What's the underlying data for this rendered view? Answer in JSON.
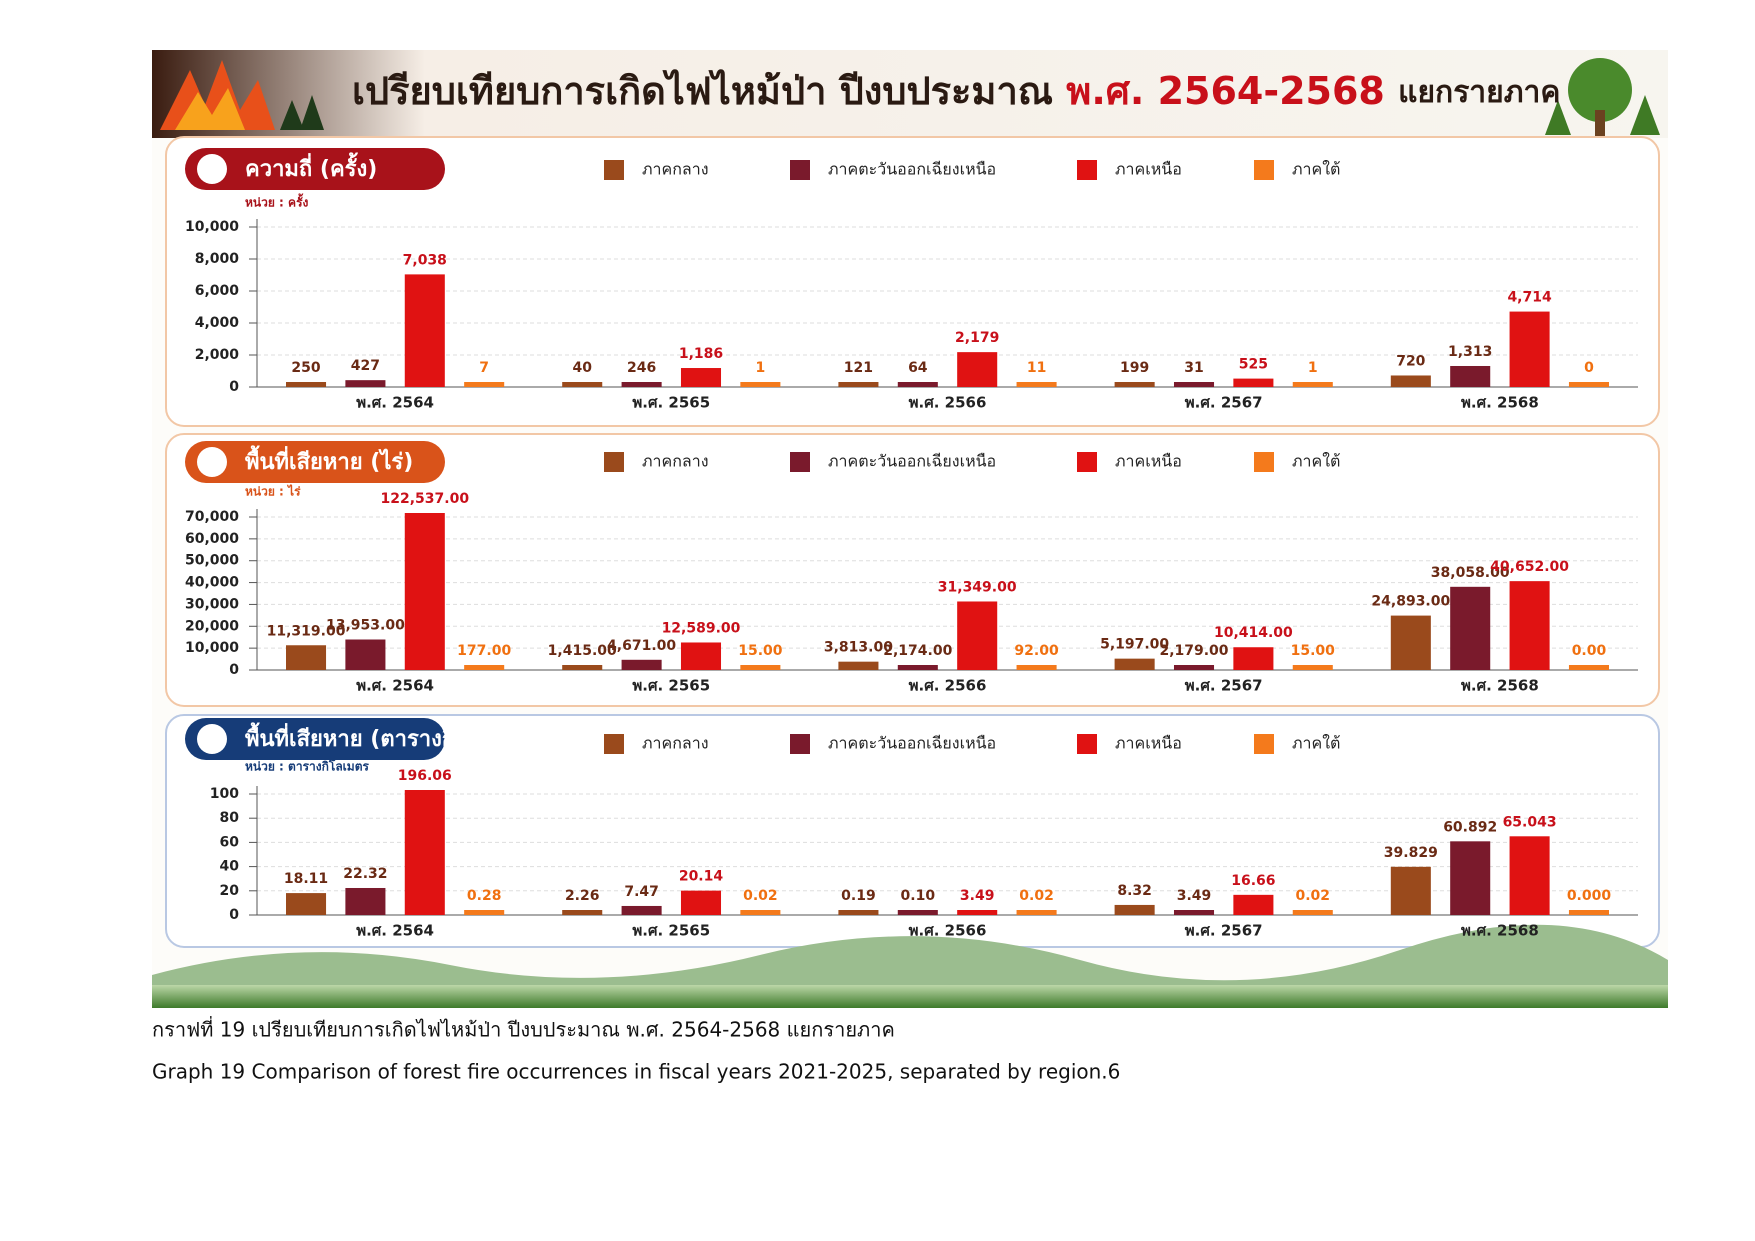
{
  "header": {
    "title_parts": [
      "เปรียบเทียบการเกิดไฟไหม้ป่า ปีงบประมาณ",
      "พ.ศ. 2564-2568",
      "แยกรายภาค"
    ]
  },
  "chart_data": [
    {
      "type": "bar",
      "title": "ความถี่ (ครั้ง)",
      "unit_label": "หน่วย : ครั้ง",
      "categories": [
        "พ.ศ. 2564",
        "พ.ศ. 2565",
        "พ.ศ. 2566",
        "พ.ศ. 2567",
        "พ.ศ. 2568"
      ],
      "series": [
        {
          "name": "ภาคกลาง",
          "color": "#9a4a1c",
          "values": [
            250,
            40,
            121,
            199,
            720
          ],
          "value_labels": [
            "250",
            "40",
            "121",
            "199",
            "720"
          ]
        },
        {
          "name": "ภาคตะวันออกเฉียงเหนือ",
          "color": "#7a1a2c",
          "values": [
            427,
            246,
            64,
            31,
            1313
          ],
          "value_labels": [
            "427",
            "246",
            "64",
            "31",
            "1,313"
          ]
        },
        {
          "name": "ภาคเหนือ",
          "color": "#e01212",
          "values": [
            7038,
            1186,
            2179,
            525,
            4714
          ],
          "value_labels": [
            "7,038",
            "1,186",
            "2,179",
            "525",
            "4,714"
          ]
        },
        {
          "name": "ภาคใต้",
          "color": "#f47a1c",
          "values": [
            7,
            1,
            11,
            1,
            0
          ],
          "value_labels": [
            "7",
            "1",
            "11",
            "1",
            "0"
          ]
        }
      ],
      "ylim": [
        0,
        10000
      ],
      "yticks": [
        0,
        {
          "value": 2000,
          "label": "2,000"
        },
        {
          "value": 4000,
          "label": "4,000"
        },
        {
          "value": 6000,
          "label": "6,000"
        },
        {
          "value": 8000,
          "label": "8,000"
        },
        {
          "value": 10000,
          "label": "10,000"
        }
      ],
      "grid": true,
      "title_color": "#a8121a"
    },
    {
      "type": "bar",
      "title": "พื้นที่เสียหาย (ไร่)",
      "unit_label": "หน่วย : ไร่",
      "categories": [
        "พ.ศ. 2564",
        "พ.ศ. 2565",
        "พ.ศ. 2566",
        "พ.ศ. 2567",
        "พ.ศ. 2568"
      ],
      "series": [
        {
          "name": "ภาคกลาง",
          "color": "#9a4a1c",
          "values": [
            11319,
            1415,
            3813,
            5197,
            24893
          ],
          "value_labels": [
            "11,319.00",
            "1,415.00",
            "3,813.00",
            "5,197.00",
            "24,893.00"
          ]
        },
        {
          "name": "ภาคตะวันออกเฉียงเหนือ",
          "color": "#7a1a2c",
          "values": [
            13953,
            4671,
            2174,
            2179,
            38058
          ],
          "value_labels": [
            "13,953.00",
            "4,671.00",
            "2,174.00",
            "2,179.00",
            "38,058.00"
          ]
        },
        {
          "name": "ภาคเหนือ",
          "color": "#e01212",
          "values": [
            122537,
            12589,
            31349,
            10414,
            40652
          ],
          "value_labels": [
            "122,537.00",
            "12,589.00",
            "31,349.00",
            "10,414.00",
            "40,652.00"
          ]
        },
        {
          "name": "ภาคใต้",
          "color": "#f47a1c",
          "values": [
            177,
            15,
            92,
            15,
            0
          ],
          "value_labels": [
            "177.00",
            "15.00",
            "92.00",
            "15.00",
            "0.00"
          ]
        }
      ],
      "ylim": [
        0,
        70000
      ],
      "yticks": [
        0,
        {
          "value": 10000,
          "label": "10,000"
        },
        {
          "value": 20000,
          "label": "20,000"
        },
        {
          "value": 30000,
          "label": "30,000"
        },
        {
          "value": 40000,
          "label": "40,000"
        },
        {
          "value": 50000,
          "label": "50,000"
        },
        {
          "value": 60000,
          "label": "60,000"
        },
        {
          "value": 70000,
          "label": "70,000"
        }
      ],
      "grid": true,
      "title_color": "#d9531a"
    },
    {
      "type": "bar",
      "title": "พื้นที่เสียหาย (ตารางกิโลเมตร)",
      "unit_label": "หน่วย : ตารางกิโลเมตร",
      "categories": [
        "พ.ศ. 2564",
        "พ.ศ. 2565",
        "พ.ศ. 2566",
        "พ.ศ. 2567",
        "พ.ศ. 2568"
      ],
      "series": [
        {
          "name": "ภาคกลาง",
          "color": "#9a4a1c",
          "values": [
            18.11,
            2.26,
            0.19,
            8.32,
            39.829
          ],
          "value_labels": [
            "18.11",
            "2.26",
            "0.19",
            "8.32",
            "39.829"
          ]
        },
        {
          "name": "ภาคตะวันออกเฉียงเหนือ",
          "color": "#7a1a2c",
          "values": [
            22.32,
            7.47,
            0.1,
            3.49,
            60.892
          ],
          "value_labels": [
            "22.32",
            "7.47",
            "0.10",
            "3.49",
            "60.892"
          ]
        },
        {
          "name": "ภาคเหนือ",
          "color": "#e01212",
          "values": [
            196.06,
            20.14,
            3.49,
            16.66,
            65.043
          ],
          "value_labels": [
            "196.06",
            "20.14",
            "3.49",
            "16.66",
            "65.043"
          ]
        },
        {
          "name": "ภาคใต้",
          "color": "#f47a1c",
          "values": [
            0.28,
            0.02,
            0.02,
            0.02,
            0
          ],
          "value_labels": [
            "0.28",
            "0.02",
            "0.02",
            "0.02",
            "0.000"
          ]
        }
      ],
      "ylim": [
        0,
        100
      ],
      "yticks": [
        0,
        20,
        40,
        60,
        80,
        100
      ],
      "grid": true,
      "title_color": "#163c78"
    }
  ],
  "caption": {
    "thai": "กราฟที่ 19 เปรียบเทียบการเกิดไฟไหม้ป่า ปีงบประมาณ พ.ศ. 2564-2568 แยกรายภาค",
    "english": "Graph 19 Comparison of forest fire occurrences in fiscal years 2021-2025, separated by region.6"
  }
}
